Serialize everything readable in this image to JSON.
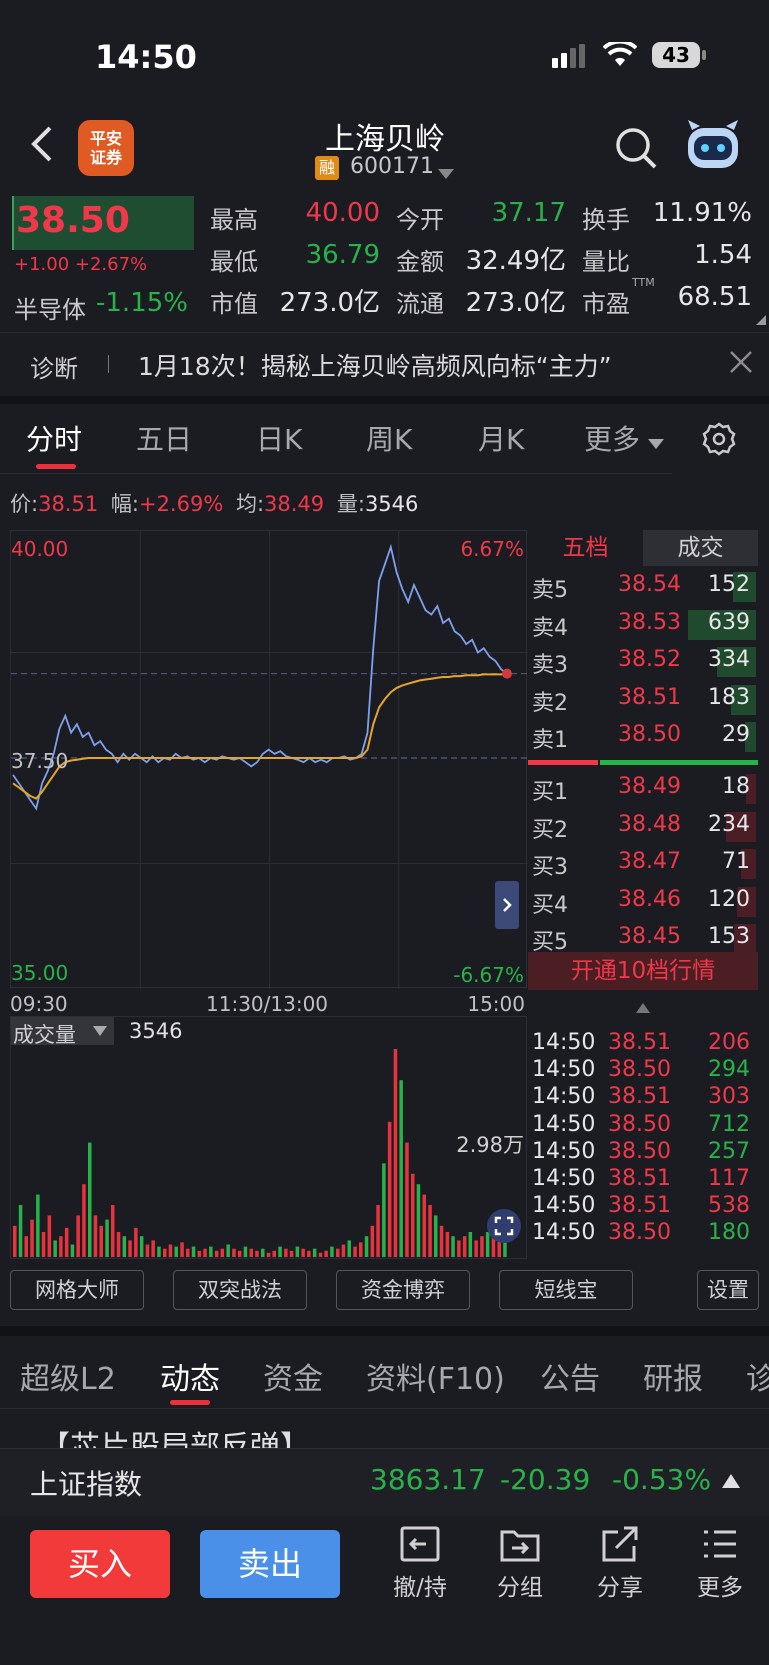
{
  "status": {
    "time": "14:50",
    "battery": "43"
  },
  "header": {
    "title": "上海贝岭",
    "rong": "融",
    "code": "600171",
    "broker_logo": "平安证券"
  },
  "quote": {
    "price": "38.50",
    "change": "+1.00 +2.67%",
    "sector_name": "半导体",
    "sector_change": "-1.15%",
    "rows": [
      [
        {
          "label": "最高",
          "value": "40.00",
          "color": "red"
        },
        {
          "label": "今开",
          "value": "37.17",
          "color": "green"
        },
        {
          "label": "换手",
          "value": "11.91%",
          "color": "white"
        }
      ],
      [
        {
          "label": "最低",
          "value": "36.79",
          "color": "green"
        },
        {
          "label": "金额",
          "value": "32.49亿",
          "color": "white"
        },
        {
          "label": "量比",
          "value": "1.54",
          "color": "white"
        }
      ],
      [
        {
          "label": "市值",
          "value": "273.0亿",
          "color": "white"
        },
        {
          "label": "流通",
          "value": "273.0亿",
          "color": "white"
        },
        {
          "label": "市盈",
          "value": "68.51",
          "color": "white",
          "sup": "TTM"
        }
      ]
    ]
  },
  "diagnosis": {
    "label": "诊断",
    "text": "1月18次！揭秘上海贝岭高频风向标“主力”"
  },
  "tabs": [
    "分时",
    "五日",
    "日K",
    "周K",
    "月K",
    "更多"
  ],
  "info": {
    "price_label": "价:",
    "price": "38.51",
    "amp_label": "幅:",
    "amp": "+2.69%",
    "avg_label": "均:",
    "avg": "38.49",
    "vol_label": "量:",
    "vol": "3546"
  },
  "chart_data": {
    "type": "line",
    "title": "",
    "y_labels": {
      "top": "40.00",
      "mid": "37.50",
      "bottom": "35.00",
      "pct_top": "6.67%",
      "pct_bottom": "-6.67%"
    },
    "x_labels": [
      "09:30",
      "11:30/13:00",
      "15:00"
    ],
    "ylim": [
      35.0,
      40.0
    ],
    "prev_close": 37.5,
    "series": [
      {
        "color": "#7ea1ee",
        "values": [
          37.3,
          37.2,
          37.1,
          37.0,
          36.9,
          37.2,
          37.35,
          37.55,
          37.85,
          38.0,
          37.8,
          37.9,
          37.75,
          37.8,
          37.65,
          37.7,
          37.6,
          37.55,
          37.45,
          37.55,
          37.48,
          37.55,
          37.5,
          37.45,
          37.52,
          37.45,
          37.5,
          37.48,
          37.55,
          37.5,
          37.52,
          37.48,
          37.5,
          37.45,
          37.5,
          37.48,
          37.52,
          37.5,
          37.48,
          37.5,
          37.45,
          37.4,
          37.45,
          37.55,
          37.6,
          37.55,
          37.58,
          37.52,
          37.5,
          37.48,
          37.45,
          37.5,
          37.45,
          37.48,
          37.45,
          37.5,
          37.5,
          37.52,
          37.48,
          37.5,
          37.55,
          37.8,
          38.8,
          39.6,
          39.8,
          40.0,
          39.7,
          39.5,
          39.35,
          39.55,
          39.4,
          39.25,
          39.2,
          39.3,
          39.1,
          39.15,
          39.0,
          38.95,
          38.85,
          38.9,
          38.75,
          38.8,
          38.7,
          38.65,
          38.55,
          38.5
        ]
      },
      {
        "color": "#e7a42a",
        "values": [
          37.2,
          37.15,
          37.1,
          37.05,
          37.02,
          37.1,
          37.2,
          37.3,
          37.4,
          37.45,
          37.47,
          37.48,
          37.49,
          37.5,
          37.5,
          37.5,
          37.5,
          37.5,
          37.5,
          37.5,
          37.5,
          37.5,
          37.5,
          37.5,
          37.5,
          37.5,
          37.5,
          37.5,
          37.5,
          37.5,
          37.5,
          37.5,
          37.5,
          37.5,
          37.5,
          37.5,
          37.5,
          37.5,
          37.5,
          37.5,
          37.5,
          37.5,
          37.5,
          37.5,
          37.5,
          37.5,
          37.5,
          37.5,
          37.5,
          37.5,
          37.5,
          37.5,
          37.5,
          37.5,
          37.5,
          37.5,
          37.5,
          37.5,
          37.5,
          37.5,
          37.52,
          37.6,
          37.9,
          38.1,
          38.2,
          38.28,
          38.33,
          38.36,
          38.38,
          38.4,
          38.42,
          38.43,
          38.44,
          38.45,
          38.46,
          38.46,
          38.47,
          38.47,
          38.48,
          38.48,
          38.48,
          38.49,
          38.49,
          38.49,
          38.49,
          38.49
        ]
      }
    ]
  },
  "orderbook": {
    "tabs": [
      "五档",
      "成交"
    ],
    "asks": [
      {
        "label": "卖5",
        "price": "38.54",
        "qty": "152",
        "bar": 0.25,
        "bar_color": "#1f4a2d"
      },
      {
        "label": "卖4",
        "price": "38.53",
        "qty": "639",
        "bar": 1.0,
        "bar_color": "#1f4a2d"
      },
      {
        "label": "卖3",
        "price": "38.52",
        "qty": "334",
        "bar": 0.52,
        "bar_color": "#1f4a2d"
      },
      {
        "label": "卖2",
        "price": "38.51",
        "qty": "183",
        "bar": 0.29,
        "bar_color": "#1f4a2d"
      },
      {
        "label": "卖1",
        "price": "38.50",
        "qty": "29",
        "bar": 0.05,
        "bar_color": "#1f4a2d"
      }
    ],
    "bids": [
      {
        "label": "买1",
        "price": "38.49",
        "qty": "18",
        "bar": 0.03,
        "bar_color": "#4a1e24"
      },
      {
        "label": "买2",
        "price": "38.48",
        "qty": "234",
        "bar": 0.37,
        "bar_color": "#4a1e24"
      },
      {
        "label": "买3",
        "price": "38.47",
        "qty": "71",
        "bar": 0.11,
        "bar_color": "#4a1e24"
      },
      {
        "label": "买4",
        "price": "38.46",
        "qty": "120",
        "bar": 0.19,
        "bar_color": "#4a1e24"
      },
      {
        "label": "买5",
        "price": "38.45",
        "qty": "153",
        "bar": 0.24,
        "bar_color": "#4a1e24"
      }
    ],
    "open_button": "开通10档行情",
    "trades": [
      {
        "time": "14:50",
        "price": "38.51",
        "qty": "206",
        "color": "red"
      },
      {
        "time": "14:50",
        "price": "38.50",
        "qty": "294",
        "color": "green"
      },
      {
        "time": "14:50",
        "price": "38.51",
        "qty": "303",
        "color": "red"
      },
      {
        "time": "14:50",
        "price": "38.50",
        "qty": "712",
        "color": "green"
      },
      {
        "time": "14:50",
        "price": "38.50",
        "qty": "257",
        "color": "green"
      },
      {
        "time": "14:50",
        "price": "38.51",
        "qty": "117",
        "color": "red"
      },
      {
        "time": "14:50",
        "price": "38.51",
        "qty": "538",
        "color": "red"
      },
      {
        "time": "14:50",
        "price": "38.50",
        "qty": "180",
        "color": "green"
      }
    ]
  },
  "volume": {
    "label": "成交量",
    "value": "3546",
    "max_label": "2.98万",
    "bars": [
      0.15,
      0.25,
      0.1,
      0.18,
      0.3,
      0.12,
      0.2,
      0.08,
      0.1,
      0.14,
      0.06,
      0.2,
      0.35,
      0.55,
      0.2,
      0.15,
      0.18,
      0.25,
      0.12,
      0.1,
      0.08,
      0.14,
      0.1,
      0.06,
      0.08,
      0.05,
      0.04,
      0.06,
      0.05,
      0.07,
      0.04,
      0.05,
      0.03,
      0.04,
      0.05,
      0.03,
      0.04,
      0.06,
      0.04,
      0.03,
      0.05,
      0.04,
      0.03,
      0.04,
      0.02,
      0.03,
      0.05,
      0.04,
      0.03,
      0.05,
      0.04,
      0.03,
      0.04,
      0.02,
      0.03,
      0.05,
      0.04,
      0.06,
      0.08,
      0.05,
      0.07,
      0.1,
      0.15,
      0.25,
      0.45,
      0.65,
      1.0,
      0.85,
      0.55,
      0.4,
      0.35,
      0.3,
      0.25,
      0.2,
      0.15,
      0.12,
      0.1,
      0.08,
      0.1,
      0.12,
      0.08,
      0.1,
      0.12,
      0.15,
      0.14,
      0.1
    ],
    "bar_colors": [
      "red",
      "green"
    ]
  },
  "tools": [
    "网格大师",
    "双突战法",
    "资金博弈",
    "短线宝",
    "设置"
  ],
  "tabs2": [
    "超级L2",
    "动态",
    "资金",
    "资料(F10)",
    "公告",
    "研报",
    "诊"
  ],
  "news_partial": "【芯片股局部反弹】",
  "index": {
    "name": "上证指数",
    "value": "3863.17",
    "change": "-20.39",
    "pct": "-0.53%"
  },
  "bottom": {
    "buy": "买入",
    "sell": "卖出",
    "actions": [
      "撤/持",
      "分组",
      "分享",
      "更多"
    ]
  }
}
